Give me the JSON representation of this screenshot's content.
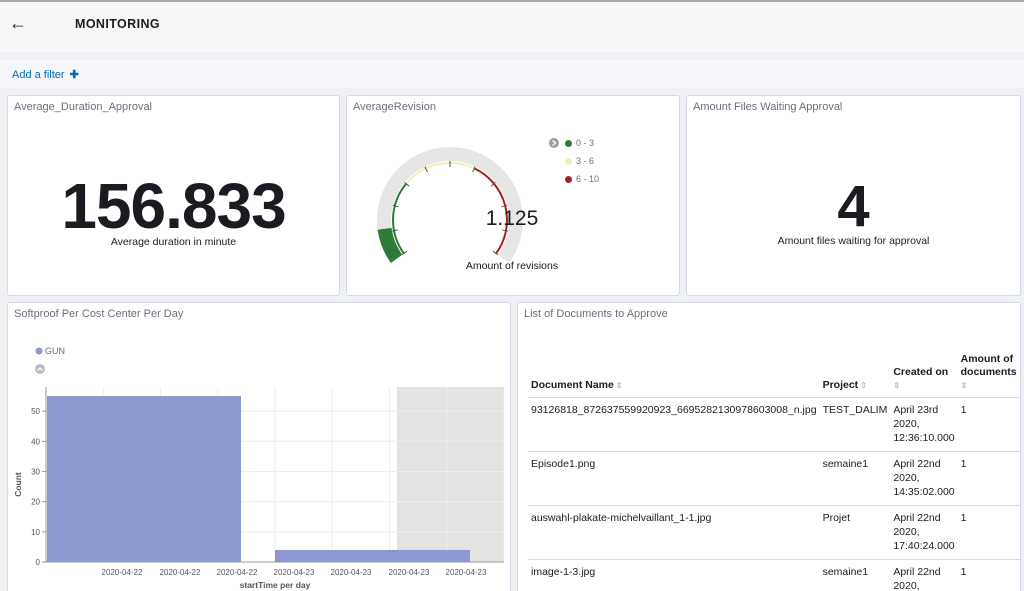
{
  "header": {
    "back_icon": "arrow-left-icon",
    "back_glyph": "←",
    "title": "MONITORING"
  },
  "filter": {
    "add_label": "Add a filter",
    "plus_glyph": "✚"
  },
  "panels": {
    "duration": {
      "title": "Average_Duration_Approval",
      "value": "156.833",
      "label": "Average duration in minute"
    },
    "revision": {
      "title": "AverageRevision",
      "value": "1.125",
      "label": "Amount of revisions",
      "legend_toggle_icon": "chevron-right-circle-icon",
      "ranges": [
        {
          "label": "0 - 3",
          "color": "#2d7a3a"
        },
        {
          "label": "3 - 6",
          "color": "#f5eeb4"
        },
        {
          "label": "6 - 10",
          "color": "#a02323"
        }
      ],
      "gauge_min": 0,
      "gauge_max": 10
    },
    "waiting": {
      "title": "Amount Files Waiting Approval",
      "value": "4",
      "label": "Amount files waiting for approval"
    },
    "softproof": {
      "title": "Softproof Per Cost Center Per Day"
    },
    "documents": {
      "title": "List of Documents to Approve",
      "columns": [
        "Document Name",
        "Project",
        "Created on",
        "Amount of documents"
      ],
      "rows": [
        {
          "name": "93126818_872637559920923_6695282130978603008_n.jpg",
          "project": "TEST_DALIM",
          "created": [
            "April 23rd",
            "2020,",
            "12:36:10.000"
          ],
          "amount": "1"
        },
        {
          "name": "Episode1.png",
          "project": "semaine1",
          "created": [
            "April 22nd",
            "2020,",
            "14:35:02.000"
          ],
          "amount": "1"
        },
        {
          "name": "auswahl-plakate-michelvaillant_1-1.jpg",
          "project": "Projet",
          "created": [
            "April 22nd",
            "2020,",
            "17:40:24.000"
          ],
          "amount": "1"
        },
        {
          "name": "image-1-3.jpg",
          "project": "semaine1",
          "created": [
            "April 22nd",
            "2020,",
            ""
          ],
          "amount": "1"
        }
      ]
    }
  },
  "chart_data": {
    "type": "bar",
    "legend": [
      {
        "name": "GUN",
        "color": "#8c98cf"
      }
    ],
    "legend_toggle_icon": "chevron-up-circle-icon",
    "xlabel": "startTime per day",
    "ylabel": "Count",
    "x_tick_labels": [
      "2020-04-22",
      "2020-04-22",
      "2020-04-22",
      "2020-04-23",
      "2020-04-23",
      "2020-04-23",
      "2020-04-23"
    ],
    "y_ticks": [
      0,
      10,
      20,
      30,
      40,
      50
    ],
    "ylim": [
      0,
      58
    ],
    "series": [
      {
        "name": "GUN",
        "bars": [
          {
            "x_start": "2020-04-22",
            "value": 55
          },
          {
            "x_start": "2020-04-23",
            "value": 4
          }
        ]
      }
    ],
    "grid": true
  }
}
